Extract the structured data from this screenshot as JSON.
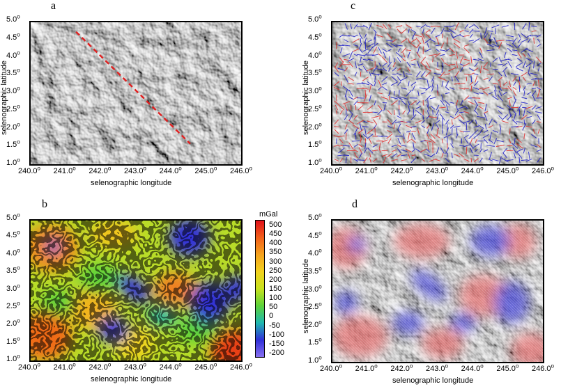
{
  "panels": [
    {
      "letter": "a",
      "xlabel": "selenographic longitude",
      "ylabel": "selenographic latitude"
    },
    {
      "letter": "b",
      "xlabel": "selenographic longitude",
      "ylabel": "selenographic latitude"
    },
    {
      "letter": "c",
      "xlabel": "selenographic longitude",
      "ylabel": "selenographic latitude"
    },
    {
      "letter": "d",
      "xlabel": "selenographic longitude",
      "ylabel": "selenographic latitude"
    }
  ],
  "axes": {
    "x_ticks": [
      "240.0",
      "241.0",
      "242.0",
      "243.0",
      "244.0",
      "245.0",
      "246.0"
    ],
    "y_ticks": [
      "5.0",
      "4.5",
      "4.0",
      "3.5",
      "3.0",
      "2.5",
      "2.0",
      "1.5",
      "1.0"
    ],
    "degree_mark": "o"
  },
  "colorbar": {
    "unit": "mGal",
    "ticks": [
      "500",
      "450",
      "400",
      "350",
      "300",
      "250",
      "200",
      "150",
      "100",
      "50",
      "0",
      "-50",
      "-100",
      "-150",
      "-200"
    ],
    "colors": [
      "#e0101a",
      "#f2601a",
      "#f5a31e",
      "#f2d21e",
      "#c8e21e",
      "#5cd23a",
      "#1fb8b0",
      "#3030d8",
      "#8870f0"
    ]
  },
  "overlays": {
    "profile_line_color": "#e02020",
    "vector_colors": {
      "positive": "#e02828",
      "negative": "#1818c8"
    }
  }
}
